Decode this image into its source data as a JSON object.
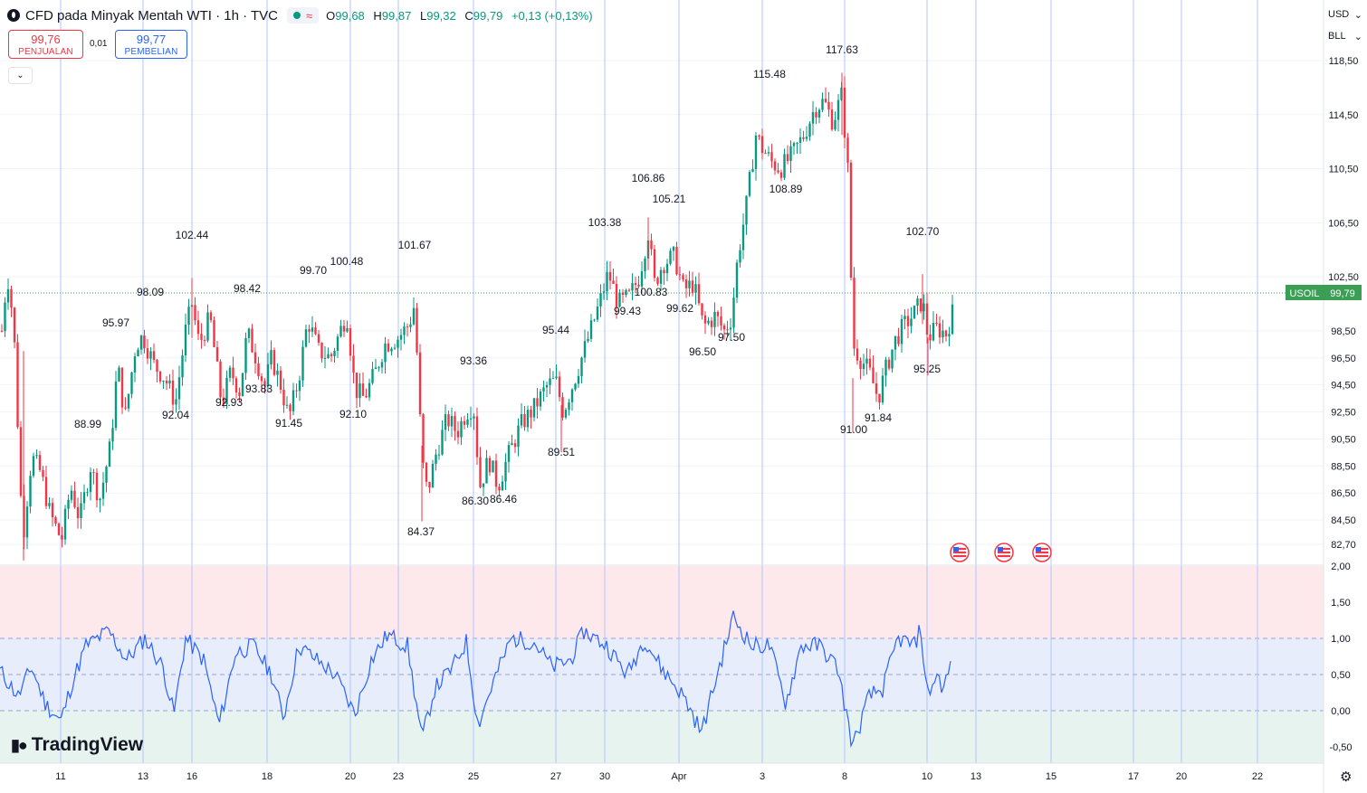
{
  "header": {
    "title": "CFD pada Minyak Mentah WTI · 1h · TVC",
    "ohlc": [
      {
        "k": "O",
        "v": "99,68"
      },
      {
        "k": "H",
        "v": "99,87"
      },
      {
        "k": "L",
        "v": "99,32"
      },
      {
        "k": "C",
        "v": "99,79"
      }
    ],
    "change": "+0,13 (+0,13%)"
  },
  "trade": {
    "sell_price": "99,76",
    "sell_label": "PENJUALAN",
    "spread": "0,01",
    "buy_price": "99,77",
    "buy_label": "PEMBELIAN"
  },
  "scale": {
    "currency": "USD",
    "unit": "BLL"
  },
  "price_axis": {
    "ticks": [
      "118,50",
      "114,50",
      "110,50",
      "106,50",
      "102,50",
      "98,50",
      "96,50",
      "94,50",
      "92,50",
      "90,50",
      "88,50",
      "86,50",
      "84,50",
      "82,70"
    ],
    "symbol": "USOIL",
    "last": "99,79"
  },
  "osc_axis": {
    "ticks": [
      "2,00",
      "1,50",
      "1,00",
      "0,50",
      "0,00",
      "-0,50"
    ]
  },
  "time_axis": {
    "ticks": [
      "11",
      "13",
      "16",
      "18",
      "20",
      "23",
      "25",
      "27",
      "30",
      "Apr",
      "3",
      "8",
      "10",
      "13",
      "15",
      "17",
      "20",
      "22"
    ]
  },
  "annotations": [
    "102.44",
    "98.09",
    "95.97",
    "88.99",
    "92.04",
    "92.93",
    "98.42",
    "93.83",
    "91.45",
    "99.70",
    "100.48",
    "92.10",
    "101.67",
    "84.37",
    "93.36",
    "86.30",
    "86.46",
    "89.51",
    "95.44",
    "103.38",
    "99.43",
    "100.83",
    "106.86",
    "105.21",
    "99.62",
    "96.50",
    "97.50",
    "115.48",
    "108.89",
    "117.63",
    "91.00",
    "91.84",
    "102.70",
    "95.25"
  ],
  "branding": {
    "name": "TradingView"
  },
  "colors": {
    "up": "#089981",
    "down": "#f23645",
    "osc_line": "#2962ff",
    "price_badge": "#3a9f55",
    "grid": "#f0f3fa",
    "vline": "#b2c3ff"
  },
  "chart_data": {
    "type": "candlestick",
    "title": "CFD pada Minyak Mentah WTI · 1h · TVC",
    "symbol": "USOIL",
    "last_price": 99.79,
    "y_range": [
      81.3,
      119.8
    ],
    "swing_points": [
      {
        "label": "102.44",
        "value": 102.44
      },
      {
        "label": "98.09",
        "value": 98.09
      },
      {
        "label": "95.97",
        "value": 95.97
      },
      {
        "label": "88.99",
        "value": 88.99
      },
      {
        "label": "92.04",
        "value": 92.04
      },
      {
        "label": "92.93",
        "value": 92.93
      },
      {
        "label": "98.42",
        "value": 98.42
      },
      {
        "label": "93.83",
        "value": 93.83
      },
      {
        "label": "91.45",
        "value": 91.45
      },
      {
        "label": "99.70",
        "value": 99.7
      },
      {
        "label": "100.48",
        "value": 100.48
      },
      {
        "label": "92.10",
        "value": 92.1
      },
      {
        "label": "101.67",
        "value": 101.67
      },
      {
        "label": "84.37",
        "value": 84.37
      },
      {
        "label": "93.36",
        "value": 93.36
      },
      {
        "label": "86.30",
        "value": 86.3
      },
      {
        "label": "86.46",
        "value": 86.46
      },
      {
        "label": "89.51",
        "value": 89.51
      },
      {
        "label": "95.44",
        "value": 95.44
      },
      {
        "label": "103.38",
        "value": 103.38
      },
      {
        "label": "99.43",
        "value": 99.43
      },
      {
        "label": "100.83",
        "value": 100.83
      },
      {
        "label": "106.86",
        "value": 106.86
      },
      {
        "label": "105.21",
        "value": 105.21
      },
      {
        "label": "99.62",
        "value": 99.62
      },
      {
        "label": "96.50",
        "value": 96.5
      },
      {
        "label": "97.50",
        "value": 97.5
      },
      {
        "label": "115.48",
        "value": 115.48
      },
      {
        "label": "108.89",
        "value": 108.89
      },
      {
        "label": "117.63",
        "value": 117.63
      },
      {
        "label": "91.00",
        "value": 91.0
      },
      {
        "label": "91.84",
        "value": 91.84
      },
      {
        "label": "102.70",
        "value": 102.7
      },
      {
        "label": "95.25",
        "value": 95.25
      }
    ],
    "oscillator": {
      "y_range": [
        -0.6,
        2.0
      ],
      "bands": [
        0,
        0.5,
        1.0
      ]
    }
  }
}
